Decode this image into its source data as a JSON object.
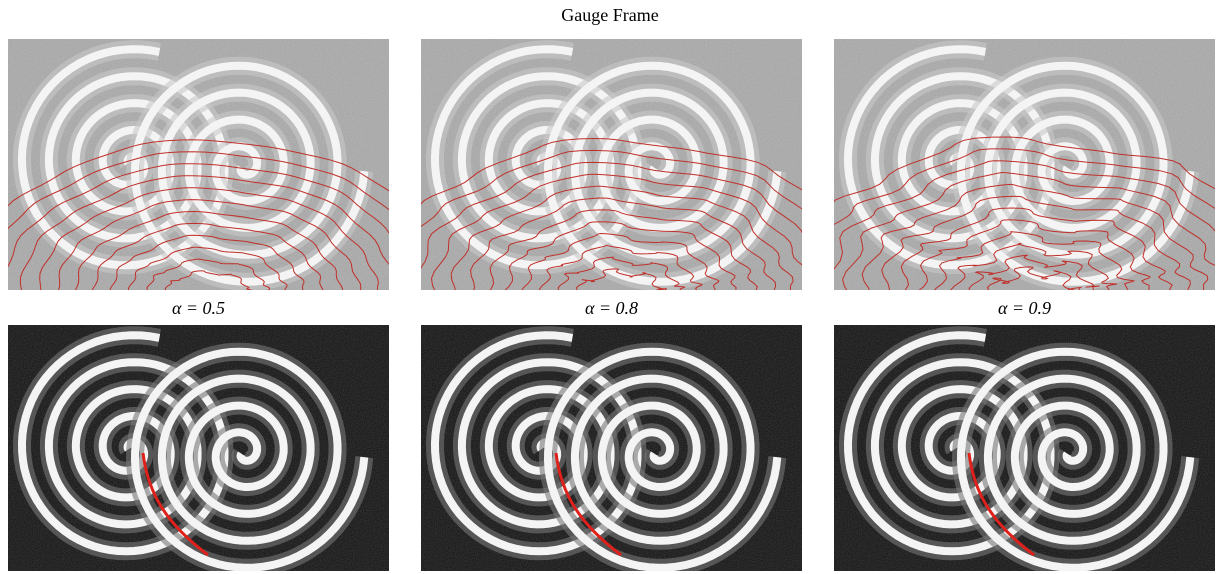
{
  "title": "Gauge Frame",
  "panels": [
    {
      "label": "α = 0.5"
    },
    {
      "label": "α = 0.8"
    },
    {
      "label": "α = 0.9"
    }
  ]
}
